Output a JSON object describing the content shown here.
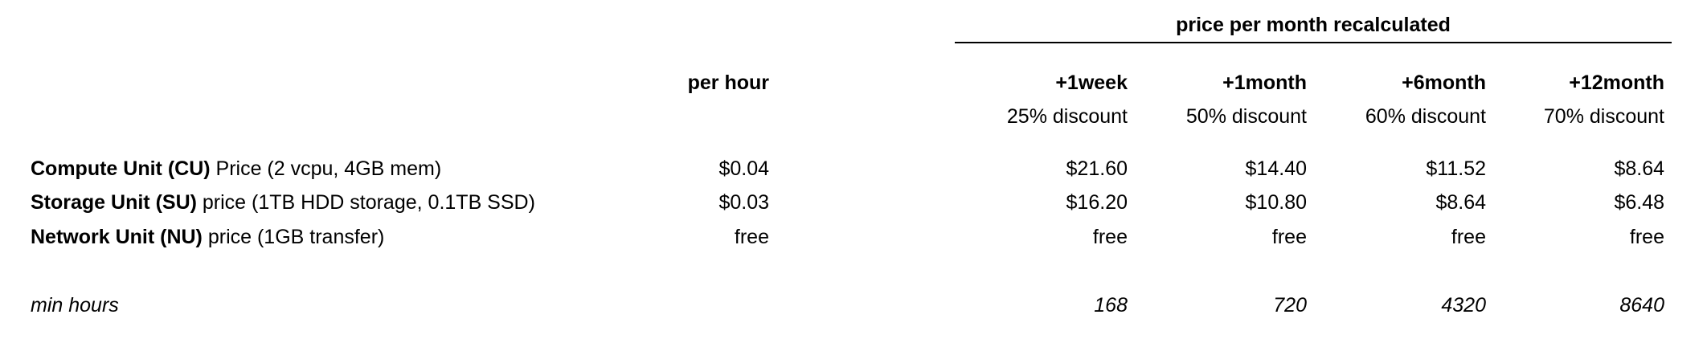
{
  "group_header": "price per month recalculated",
  "columns": [
    {
      "label": "per hour",
      "sublabel": ""
    },
    {
      "label": "+1week",
      "sublabel": "25% discount"
    },
    {
      "label": "+1month",
      "sublabel": "50% discount"
    },
    {
      "label": "+6month",
      "sublabel": "60% discount"
    },
    {
      "label": "+12month",
      "sublabel": "70% discount"
    }
  ],
  "rows": [
    {
      "label_bold": "Compute Unit (CU)",
      "label_rest": " Price (2 vcpu, 4GB mem)",
      "values": [
        "$0.04",
        "$21.60",
        "$14.40",
        "$11.52",
        "$8.64"
      ]
    },
    {
      "label_bold": "Storage Unit (SU)",
      "label_rest": " price (1TB HDD storage, 0.1TB SSD)",
      "values": [
        "$0.03",
        "$16.20",
        "$10.80",
        "$8.64",
        "$6.48"
      ]
    },
    {
      "label_bold": "Network Unit (NU)",
      "label_rest": " price (1GB transfer)",
      "values": [
        "free",
        "free",
        "free",
        "free",
        "free"
      ]
    }
  ],
  "min_hours": {
    "label": "min hours",
    "values": [
      "",
      "168",
      "720",
      "4320",
      "8640"
    ]
  }
}
